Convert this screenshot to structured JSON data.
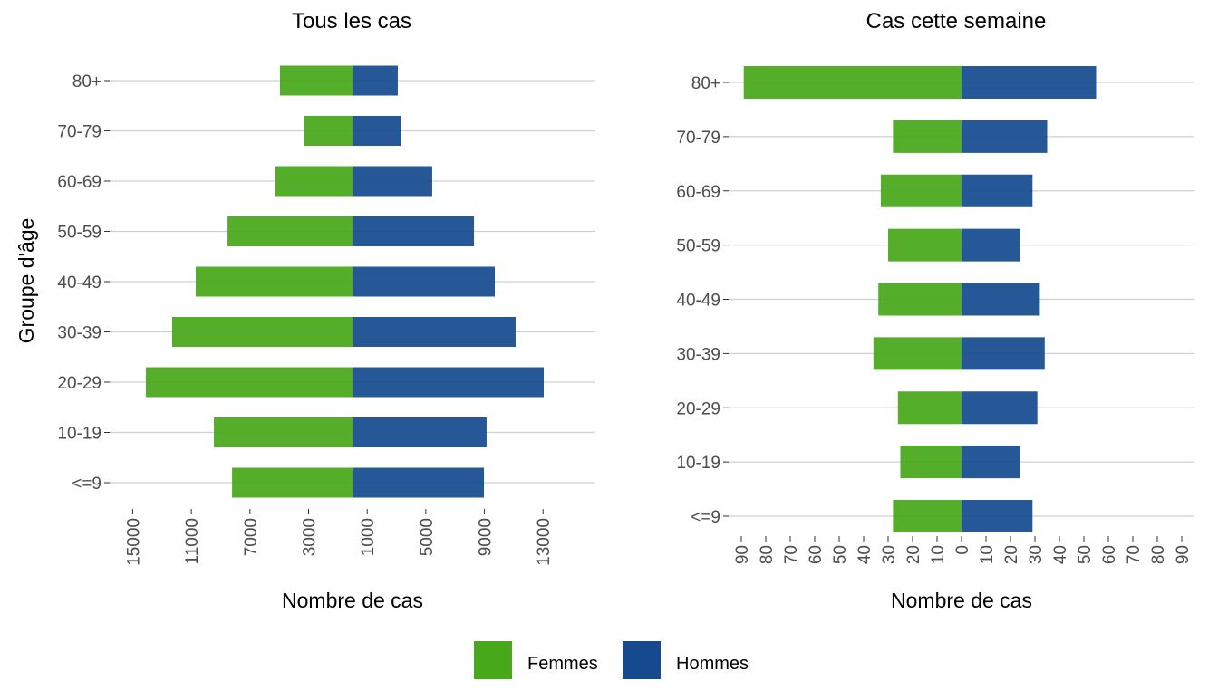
{
  "colors": {
    "femmes": "#47a81a",
    "hommes": "#164a8e",
    "grid": "#d0d0d0"
  },
  "legend": {
    "items": [
      {
        "label": "Femmes",
        "color": "#47a81a"
      },
      {
        "label": "Hommes",
        "color": "#164a8e"
      }
    ]
  },
  "y_axis_title": "Groupe d'âge",
  "chart_data": [
    {
      "type": "bar",
      "orientation": "horizontal-pyramid",
      "title": "Tous les cas",
      "xlabel": "Nombre de cas",
      "ylabel": "Groupe d'âge",
      "categories": [
        "<=9",
        "10-19",
        "20-29",
        "30-39",
        "40-49",
        "50-59",
        "60-69",
        "70-79",
        "80+"
      ],
      "series": [
        {
          "name": "Femmes",
          "values": [
            8220,
            9460,
            14100,
            12310,
            10700,
            8530,
            5260,
            3280,
            4950
          ]
        },
        {
          "name": "Hommes",
          "values": [
            8970,
            9150,
            13050,
            11130,
            9710,
            8290,
            5440,
            3280,
            3090
          ]
        }
      ],
      "xticks": [
        -15000,
        -11000,
        -7000,
        -3000,
        1000,
        5000,
        9000,
        13000
      ],
      "xtick_labels": [
        "15000",
        "11000",
        "7000",
        "3000",
        "1000",
        "5000",
        "9000",
        "13000"
      ],
      "xlim": [
        -16000,
        16600
      ],
      "grid": true
    },
    {
      "type": "bar",
      "orientation": "horizontal-pyramid",
      "title": "Cas cette semaine",
      "xlabel": "Nombre de cas",
      "ylabel": "",
      "categories": [
        "<=9",
        "10-19",
        "20-29",
        "30-39",
        "40-49",
        "50-59",
        "60-69",
        "70-79",
        "80+"
      ],
      "series": [
        {
          "name": "Femmes",
          "values": [
            28,
            25,
            26,
            36,
            34,
            30,
            33,
            28,
            89
          ]
        },
        {
          "name": "Hommes",
          "values": [
            29,
            24,
            31,
            34,
            32,
            24,
            29,
            35,
            55
          ]
        }
      ],
      "xticks": [
        -90,
        -80,
        -70,
        -60,
        -50,
        -40,
        -30,
        -20,
        -10,
        0,
        10,
        20,
        30,
        40,
        50,
        60,
        70,
        80,
        90
      ],
      "xtick_labels": [
        "90",
        "80",
        "70",
        "60",
        "50",
        "40",
        "30",
        "20",
        "10",
        "0",
        "10",
        "20",
        "30",
        "40",
        "50",
        "60",
        "70",
        "80",
        "90"
      ],
      "xlim": [
        -95,
        96
      ],
      "grid": true
    }
  ]
}
